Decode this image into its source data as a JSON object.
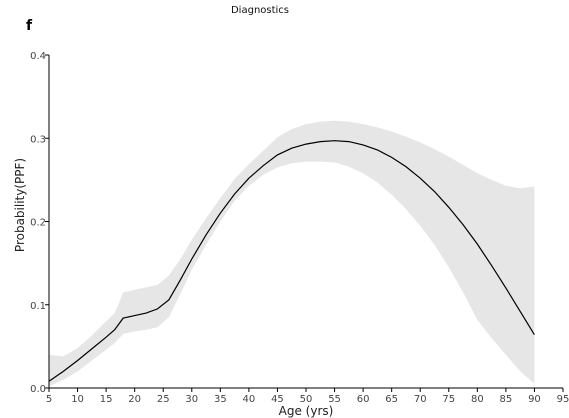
{
  "chart_data": {
    "type": "line",
    "title": "Diagnostics",
    "panel_label": "f",
    "xlabel": "Age (yrs)",
    "ylabel": "Probability(PPF)",
    "xlim": [
      5,
      95
    ],
    "ylim": [
      0,
      0.4
    ],
    "xticks": [
      5,
      10,
      15,
      20,
      25,
      30,
      35,
      40,
      45,
      50,
      55,
      60,
      65,
      70,
      75,
      80,
      85,
      90,
      95
    ],
    "yticks": [
      0.0,
      0.1,
      0.2,
      0.3,
      0.4
    ],
    "ytick_labels": [
      "0.0",
      "0.1",
      "0.2",
      "0.3",
      "0.4"
    ],
    "grid": false,
    "line_color": "#000000",
    "band_color": "#e6e6e6",
    "series": [
      {
        "x": [
          5,
          7.5,
          10,
          12.5,
          15,
          16.5,
          18,
          20,
          22,
          24,
          26,
          28,
          30,
          32.5,
          35,
          37.5,
          40,
          42.5,
          45,
          47.5,
          50,
          52.5,
          55,
          57.5,
          60,
          62.5,
          65,
          67.5,
          70,
          72.5,
          75,
          77.5,
          80,
          82.5,
          85,
          87.5,
          90
        ],
        "values": [
          0.008,
          0.02,
          0.033,
          0.047,
          0.061,
          0.07,
          0.084,
          0.087,
          0.09,
          0.095,
          0.106,
          0.13,
          0.155,
          0.184,
          0.21,
          0.233,
          0.252,
          0.267,
          0.28,
          0.288,
          0.293,
          0.296,
          0.297,
          0.296,
          0.292,
          0.286,
          0.277,
          0.266,
          0.252,
          0.236,
          0.217,
          0.196,
          0.173,
          0.147,
          0.12,
          0.092,
          0.064
        ],
        "lower": [
          0.002,
          0.01,
          0.02,
          0.033,
          0.046,
          0.054,
          0.065,
          0.068,
          0.07,
          0.073,
          0.085,
          0.113,
          0.142,
          0.172,
          0.2,
          0.225,
          0.243,
          0.256,
          0.265,
          0.27,
          0.272,
          0.272,
          0.271,
          0.266,
          0.258,
          0.247,
          0.232,
          0.215,
          0.195,
          0.172,
          0.145,
          0.115,
          0.082,
          0.06,
          0.04,
          0.02,
          0.005
        ],
        "upper": [
          0.04,
          0.038,
          0.048,
          0.063,
          0.08,
          0.09,
          0.115,
          0.118,
          0.121,
          0.124,
          0.135,
          0.155,
          0.178,
          0.204,
          0.228,
          0.251,
          0.269,
          0.285,
          0.301,
          0.311,
          0.317,
          0.32,
          0.321,
          0.32,
          0.317,
          0.313,
          0.308,
          0.302,
          0.295,
          0.287,
          0.278,
          0.268,
          0.258,
          0.25,
          0.243,
          0.24,
          0.242
        ]
      }
    ]
  }
}
